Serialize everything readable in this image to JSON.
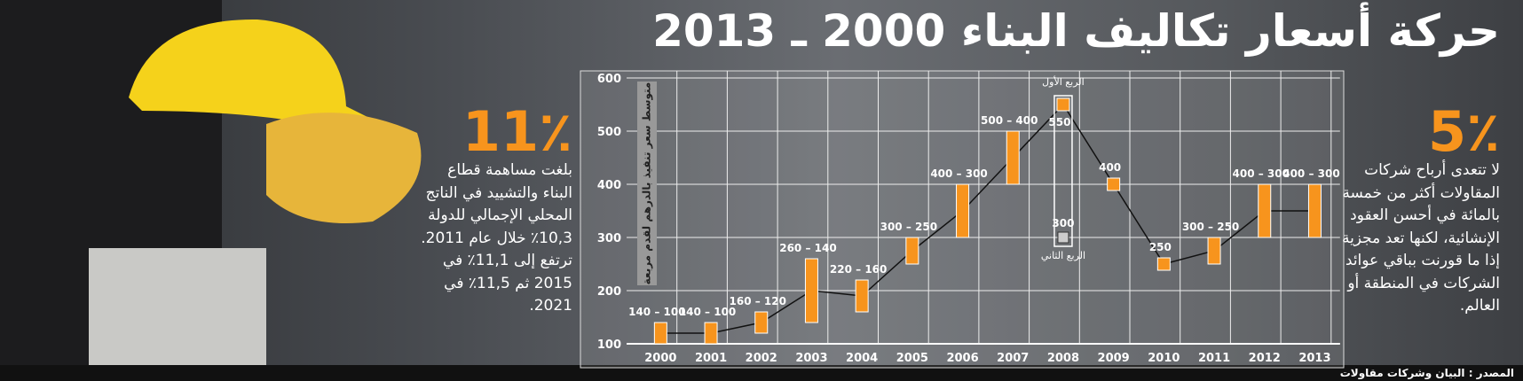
{
  "title": "حركة أسعار تكاليف البناء 2000 ـ 2013",
  "left_note": {
    "stat": "11٪",
    "text": "بلغت مساهمة قطاع البناء والتشييد في الناتج المحلي الإجمالي للدولة 10,3٪ خلال عام 2011. ترتفع إلى 11,1٪ في 2015 ثم 11,5٪ في 2021."
  },
  "right_note": {
    "stat": "5٪",
    "text": "لا تتعدى أرباح شركات المقاولات أكثر من خمسة بالمائة في أحسن العقود الإنشائية، لكنها تعد مجزية إذا ما قورنت بباقي عوائد الشركات في المنطقة أو العالم."
  },
  "source": "المصدر : البيان وشركات مقاولات",
  "chart_data": {
    "type": "range_bar",
    "y_label": "متوسط سعر تنفيذ بالدرهم لقدم مربعة",
    "categories": [
      "2000",
      "2001",
      "2002",
      "2003",
      "2004",
      "2005",
      "2006",
      "2007",
      "2008",
      "2009",
      "2010",
      "2011",
      "2012",
      "2013"
    ],
    "high": [
      140,
      140,
      160,
      260,
      220,
      300,
      400,
      500,
      550,
      400,
      250,
      300,
      400,
      400
    ],
    "low": [
      100,
      100,
      120,
      140,
      160,
      250,
      300,
      400,
      null,
      null,
      null,
      250,
      300,
      300
    ],
    "value_labels": [
      "140 – 100",
      "140 – 100",
      "160 – 120",
      "260 – 140",
      "220 – 160",
      "300 – 250",
      "400 – 300",
      "500 – 400",
      "550",
      "400",
      "250",
      "300 – 250",
      "400 – 300",
      "400 – 300"
    ],
    "q1_label": "الربع الأول",
    "q2": {
      "label": "الربع الثاني",
      "value": 300
    },
    "color": "#f7941d",
    "line_color": "#111111",
    "ylim": [
      100,
      600
    ],
    "yticks": [
      100,
      200,
      300,
      400,
      500,
      600
    ],
    "grid": true
  }
}
